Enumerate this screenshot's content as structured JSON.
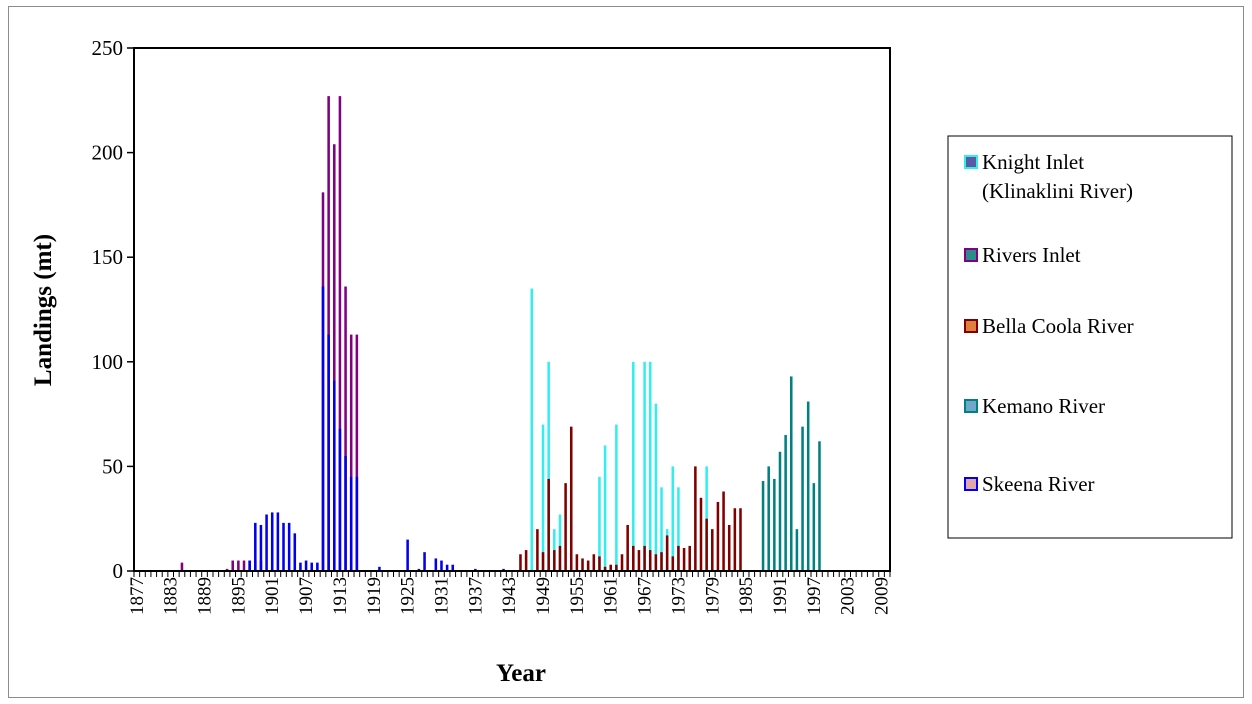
{
  "chart_data": {
    "type": "bar",
    "title": "",
    "xlabel": "Year",
    "ylabel": "Landings (mt)",
    "xlim": [
      1877,
      2011
    ],
    "ylim": [
      0,
      250
    ],
    "yticks": [
      0,
      50,
      100,
      150,
      200,
      250
    ],
    "xtick_start": 1877,
    "xtick_end": 2009,
    "xtick_step": 6,
    "grid": false,
    "legend_position": "right",
    "series": [
      {
        "name": "Knight Inlet (Klinaklini River)",
        "color": "#33EEEE",
        "legend_swatch": "#5A5AA6",
        "points": [
          [
            1947,
            135
          ],
          [
            1949,
            70
          ],
          [
            1950,
            100
          ],
          [
            1951,
            20
          ],
          [
            1952,
            27
          ],
          [
            1959,
            45
          ],
          [
            1960,
            60
          ],
          [
            1962,
            70
          ],
          [
            1965,
            100
          ],
          [
            1967,
            100
          ],
          [
            1968,
            100
          ],
          [
            1969,
            80
          ],
          [
            1970,
            40
          ],
          [
            1971,
            20
          ],
          [
            1972,
            50
          ],
          [
            1973,
            40
          ],
          [
            1978,
            50
          ]
        ]
      },
      {
        "name": "Rivers Inlet",
        "color": "#800080",
        "legend_swatch": "#2E8B8B",
        "points": [
          [
            1885,
            4
          ],
          [
            1893,
            1
          ],
          [
            1894,
            5
          ],
          [
            1895,
            5
          ],
          [
            1896,
            5
          ],
          [
            1897,
            5
          ],
          [
            1898,
            5
          ],
          [
            1899,
            5
          ],
          [
            1910,
            181
          ],
          [
            1911,
            227
          ],
          [
            1912,
            204
          ],
          [
            1913,
            227
          ],
          [
            1914,
            136
          ],
          [
            1915,
            113
          ],
          [
            1916,
            113
          ]
        ]
      },
      {
        "name": "Bella Coola River",
        "color": "#800000",
        "legend_swatch": "#E0803A",
        "points": [
          [
            1945,
            8
          ],
          [
            1946,
            10
          ],
          [
            1948,
            20
          ],
          [
            1949,
            9
          ],
          [
            1950,
            44
          ],
          [
            1951,
            10
          ],
          [
            1952,
            12
          ],
          [
            1953,
            42
          ],
          [
            1954,
            69
          ],
          [
            1955,
            8
          ],
          [
            1956,
            6
          ],
          [
            1957,
            5
          ],
          [
            1958,
            8
          ],
          [
            1959,
            7
          ],
          [
            1960,
            2
          ],
          [
            1961,
            3
          ],
          [
            1962,
            3
          ],
          [
            1963,
            8
          ],
          [
            1964,
            22
          ],
          [
            1965,
            12
          ],
          [
            1966,
            10
          ],
          [
            1967,
            12
          ],
          [
            1968,
            10
          ],
          [
            1969,
            8
          ],
          [
            1970,
            9
          ],
          [
            1971,
            17
          ],
          [
            1972,
            7
          ],
          [
            1973,
            12
          ],
          [
            1974,
            11
          ],
          [
            1975,
            12
          ],
          [
            1976,
            50
          ],
          [
            1977,
            35
          ],
          [
            1978,
            25
          ],
          [
            1979,
            20
          ],
          [
            1980,
            33
          ],
          [
            1981,
            38
          ],
          [
            1982,
            22
          ],
          [
            1983,
            30
          ],
          [
            1984,
            30
          ]
        ]
      },
      {
        "name": "Kemano River",
        "color": "#008080",
        "legend_swatch": "#6FA8C8",
        "points": [
          [
            1988,
            43
          ],
          [
            1989,
            50
          ],
          [
            1990,
            44
          ],
          [
            1991,
            57
          ],
          [
            1992,
            65
          ],
          [
            1993,
            93
          ],
          [
            1994,
            20
          ],
          [
            1995,
            69
          ],
          [
            1996,
            81
          ],
          [
            1997,
            42
          ],
          [
            1998,
            62
          ]
        ]
      },
      {
        "name": "Skeena River",
        "color": "#0000EE",
        "legend_swatch": "#E0A8A8",
        "points": [
          [
            1897,
            5
          ],
          [
            1898,
            23
          ],
          [
            1899,
            22
          ],
          [
            1900,
            27
          ],
          [
            1901,
            28
          ],
          [
            1902,
            28
          ],
          [
            1903,
            23
          ],
          [
            1904,
            23
          ],
          [
            1905,
            18
          ],
          [
            1906,
            4
          ],
          [
            1907,
            5
          ],
          [
            1908,
            4
          ],
          [
            1909,
            4
          ],
          [
            1910,
            136
          ],
          [
            1911,
            113
          ],
          [
            1912,
            91
          ],
          [
            1913,
            68
          ],
          [
            1914,
            55
          ],
          [
            1915,
            45
          ],
          [
            1916,
            45
          ],
          [
            1920,
            2
          ],
          [
            1925,
            15
          ],
          [
            1927,
            1
          ],
          [
            1928,
            9
          ],
          [
            1930,
            6
          ],
          [
            1931,
            5
          ],
          [
            1932,
            3
          ],
          [
            1933,
            3
          ],
          [
            1937,
            1
          ],
          [
            1942,
            1
          ]
        ]
      }
    ]
  }
}
